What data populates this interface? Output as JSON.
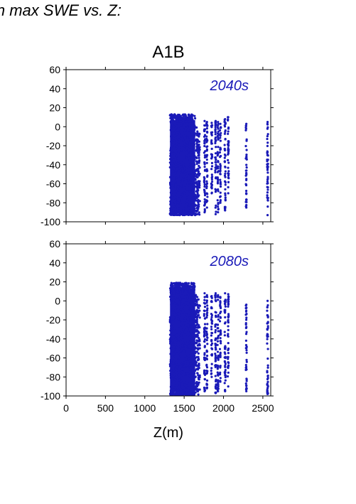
{
  "figure": {
    "heading": "in max SWE vs. Z:",
    "scenario": "A1B",
    "xlabel": "Z(m)",
    "point_color": "#1a1ab8",
    "panel_label_color": "#1a1ab8"
  },
  "chart_data": [
    {
      "type": "scatter",
      "title": "A1B",
      "panel_label": "2040s",
      "xlabel": "",
      "ylabel": "",
      "xlim": [
        0,
        2600
      ],
      "ylim": [
        -100,
        60
      ],
      "xticks": [
        0,
        500,
        1000,
        1500,
        2000,
        2500
      ],
      "yticks": [
        60,
        40,
        20,
        0,
        -20,
        -40,
        -60,
        -80,
        -100
      ],
      "show_x_ticklabels": false,
      "grid": false,
      "series": [
        {
          "color": "#1a1ab8",
          "dense_bands": [
            {
              "x": [
                1320,
                1700
              ],
              "y": [
                -93,
                13
              ]
            }
          ],
          "columns": [
            {
              "x": 1760,
              "y": [
                -90,
                6
              ]
            },
            {
              "x": 1790,
              "y": [
                -85,
                5
              ]
            },
            {
              "x": 1850,
              "y": [
                -70,
                4
              ]
            },
            {
              "x": 1900,
              "y": [
                -92,
                6
              ]
            },
            {
              "x": 1930,
              "y": [
                -90,
                5
              ]
            },
            {
              "x": 1960,
              "y": [
                -80,
                3
              ]
            },
            {
              "x": 2020,
              "y": [
                -88,
                8
              ]
            },
            {
              "x": 2060,
              "y": [
                -70,
                10
              ]
            },
            {
              "x": 2290,
              "y": [
                -85,
                3
              ]
            },
            {
              "x": 2560,
              "y": [
                -93,
                5
              ]
            }
          ]
        }
      ]
    },
    {
      "type": "scatter",
      "title": "",
      "panel_label": "2080s",
      "xlabel": "Z(m)",
      "ylabel": "",
      "xlim": [
        0,
        2600
      ],
      "ylim": [
        -100,
        60
      ],
      "xticks": [
        0,
        500,
        1000,
        1500,
        2000,
        2500
      ],
      "xticklabels": [
        "0",
        "500",
        "1000",
        "1500",
        "2000",
        "2500"
      ],
      "yticks": [
        60,
        40,
        20,
        0,
        -20,
        -40,
        -60,
        -80,
        -100
      ],
      "show_x_ticklabels": true,
      "grid": false,
      "series": [
        {
          "color": "#1a1ab8",
          "dense_bands": [
            {
              "x": [
                1320,
                1700
              ],
              "y": [
                -99,
                19
              ]
            }
          ],
          "columns": [
            {
              "x": 1760,
              "y": [
                -95,
                8
              ]
            },
            {
              "x": 1790,
              "y": [
                -92,
                6
              ]
            },
            {
              "x": 1850,
              "y": [
                -80,
                5
              ]
            },
            {
              "x": 1900,
              "y": [
                -97,
                8
              ]
            },
            {
              "x": 1930,
              "y": [
                -95,
                6
              ]
            },
            {
              "x": 1960,
              "y": [
                -85,
                4
              ]
            },
            {
              "x": 2020,
              "y": [
                -95,
                8
              ]
            },
            {
              "x": 2060,
              "y": [
                -90,
                7
              ]
            },
            {
              "x": 2290,
              "y": [
                -95,
                -4
              ]
            },
            {
              "x": 2560,
              "y": [
                -98,
                0
              ]
            }
          ]
        }
      ]
    }
  ]
}
